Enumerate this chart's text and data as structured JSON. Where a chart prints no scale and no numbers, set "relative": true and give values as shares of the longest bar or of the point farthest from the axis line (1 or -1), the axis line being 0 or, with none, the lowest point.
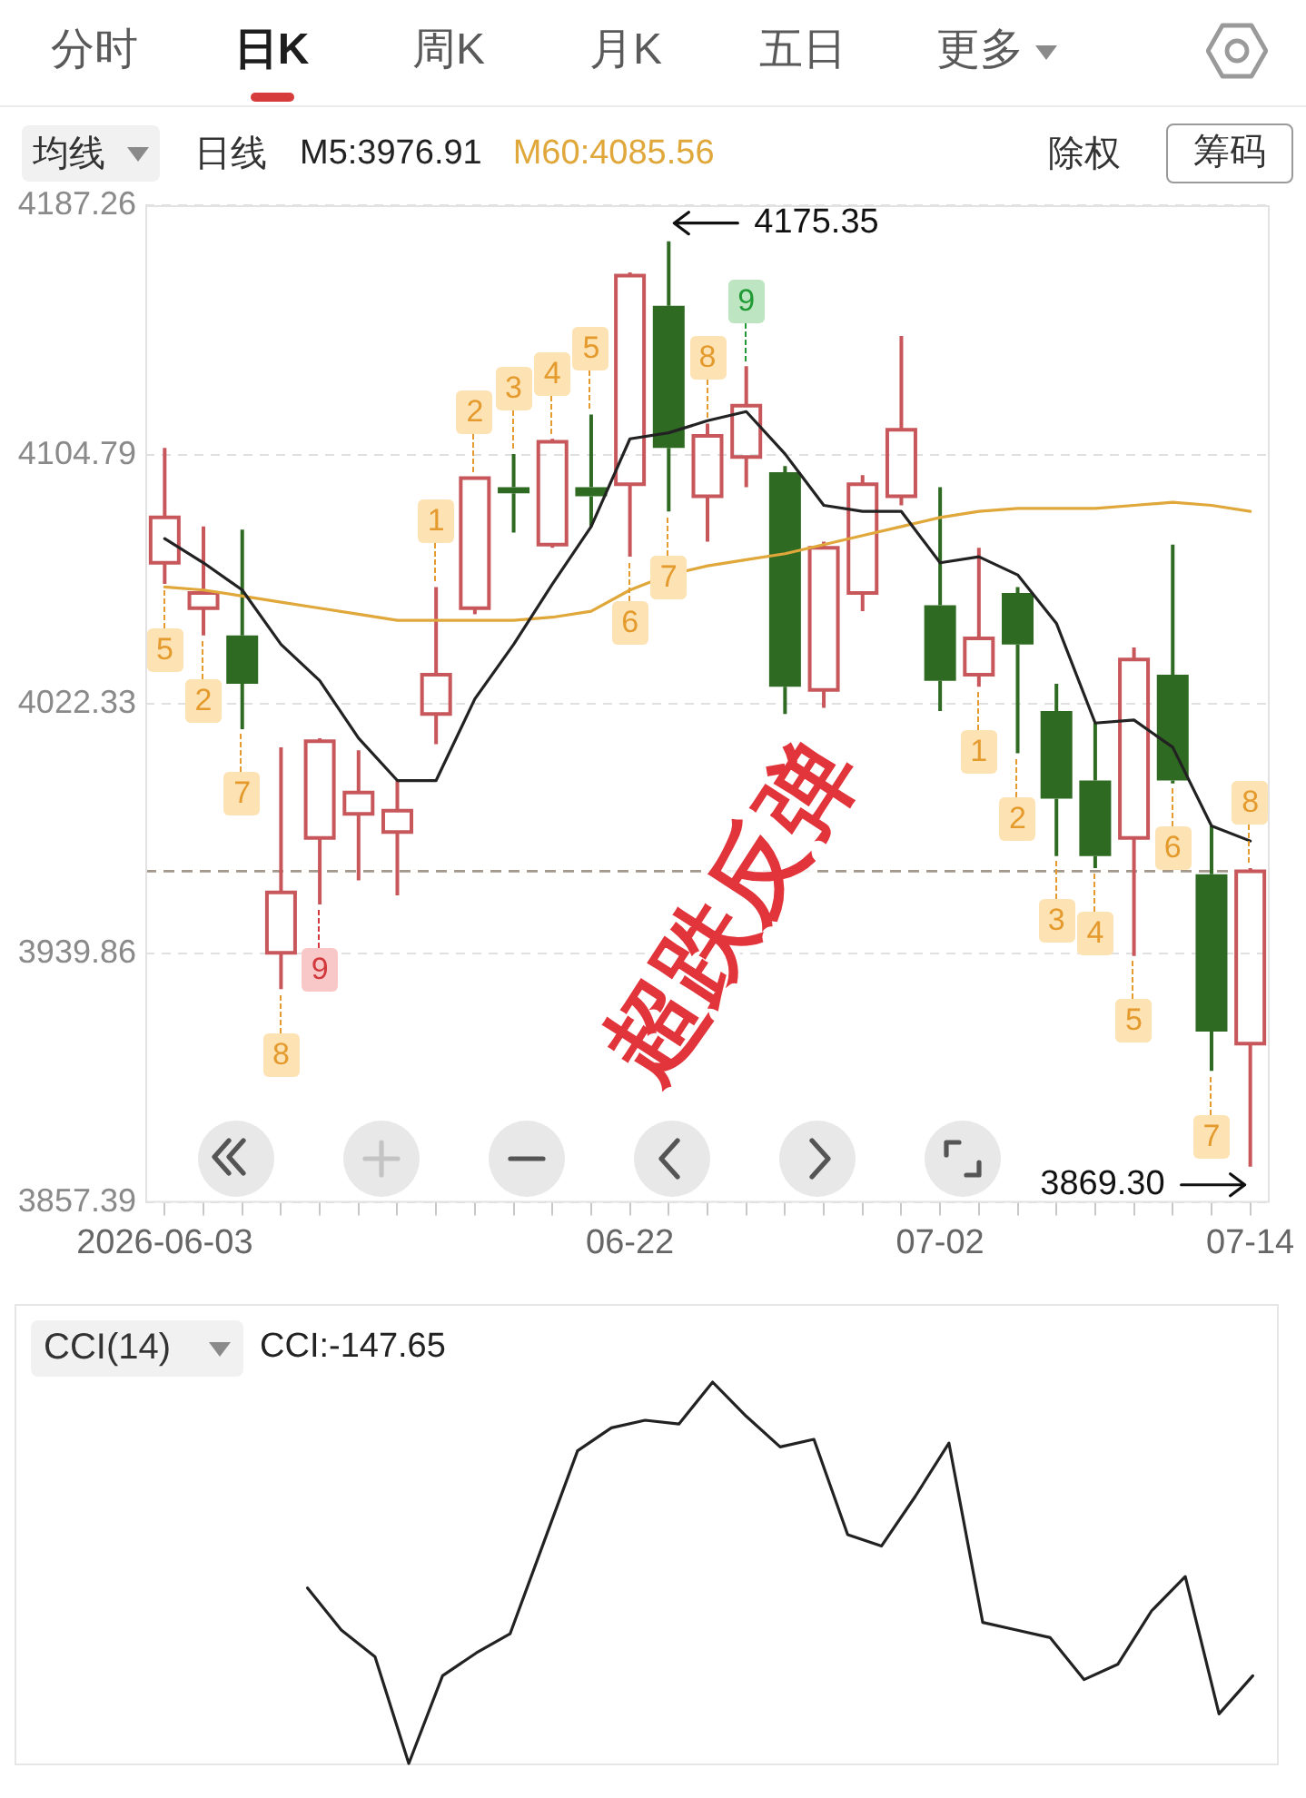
{
  "chart_data": [
    {
      "type": "candlestick",
      "categories": [
        "2026-06-03",
        null,
        null,
        null,
        null,
        null,
        null,
        null,
        null,
        null,
        null,
        null,
        "06-22",
        null,
        null,
        null,
        null,
        null,
        null,
        null,
        "07-02",
        null,
        null,
        null,
        null,
        null,
        null,
        null,
        "07-14"
      ],
      "ohlc": [
        [
          4069,
          4107,
          4062,
          4084
        ],
        [
          4054,
          4081,
          4045,
          4059
        ],
        [
          4045,
          4080,
          4014,
          4029
        ],
        [
          3940,
          4008,
          3928,
          3960
        ],
        [
          3978,
          4011,
          3956,
          4010
        ],
        [
          3986,
          4007,
          3964,
          3993
        ],
        [
          3980,
          3997,
          3959,
          3987
        ],
        [
          4019,
          4061,
          4009,
          4032
        ],
        [
          4054,
          4097,
          4052,
          4097
        ],
        [
          4094,
          4105,
          4079,
          4092
        ],
        [
          4075,
          4110,
          4074,
          4109
        ],
        [
          4094,
          4118,
          4081,
          4091
        ],
        [
          4095,
          4165,
          4071,
          4164
        ],
        [
          4154,
          4175.35,
          4086,
          4107
        ],
        [
          4091,
          4115,
          4076,
          4111
        ],
        [
          4104,
          4134,
          4094,
          4121
        ],
        [
          4099,
          4101,
          4019,
          4028
        ],
        [
          4027,
          4076,
          4021,
          4074
        ],
        [
          4059,
          4098,
          4053,
          4095
        ],
        [
          4091,
          4144,
          4088,
          4113
        ],
        [
          4055,
          4094,
          4020,
          4030
        ],
        [
          4032,
          4074,
          4028,
          4044
        ],
        [
          4059,
          4061,
          4006,
          4042
        ],
        [
          4020,
          4029,
          3972,
          3991
        ],
        [
          3997,
          4016,
          3968,
          3972
        ],
        [
          3978,
          4041,
          3939,
          4037
        ],
        [
          4032,
          4075,
          3996,
          3997
        ],
        [
          3966,
          3982,
          3901,
          3914
        ],
        [
          3910,
          3968,
          3869.3,
          3967
        ]
      ],
      "colors": [
        "#c8575b",
        "#c8575b",
        "#2f6a22",
        "#c8575b",
        "#c8575b",
        "#c8575b",
        "#c8575b",
        "#c8575b",
        "#c8575b",
        "#2f6a22",
        "#c8575b",
        "#2f6a22",
        "#c8575b",
        "#2f6a22",
        "#c8575b",
        "#c8575b",
        "#2f6a22",
        "#c8575b",
        "#c8575b",
        "#c8575b",
        "#2f6a22",
        "#c8575b",
        "#2f6a22",
        "#2f6a22",
        "#2f6a22",
        "#c8575b",
        "#2f6a22",
        "#2f6a22",
        "#c8575b"
      ],
      "series": [
        {
          "name": "M5:3976.91",
          "type": "line",
          "color": "#222222",
          "values": [
            4077,
            4069,
            4060,
            4042,
            4030,
            4011,
            3997,
            3997,
            4024,
            4042,
            4062,
            4081,
            4110,
            4112,
            4116,
            4119,
            4105,
            4088,
            4086,
            4086,
            4069,
            4071,
            4065,
            4049,
            4016,
            4017,
            4008,
            3982,
            3977
          ]
        },
        {
          "name": "M60:4085.56",
          "type": "line",
          "color": "#e0a73a",
          "values": [
            4061,
            4060,
            4058,
            4056,
            4054,
            4052,
            4050,
            4050,
            4050,
            4050,
            4051,
            4053,
            4060,
            4065,
            4068,
            4070,
            4072,
            4075,
            4078,
            4081,
            4084,
            4086,
            4087,
            4087,
            4087,
            4088,
            4089,
            4088,
            4086
          ]
        }
      ],
      "ylim": [
        3857.39,
        4187.26
      ],
      "yticks": [
        3857.39,
        3939.86,
        4022.33,
        4104.79,
        4187.26
      ],
      "grid": "y",
      "legend": "top left",
      "ref_lines": [
        {
          "axis": "y",
          "value": 3967,
          "line_style": "dashed",
          "color": "#a3988a"
        }
      ],
      "annotations": [
        "分时",
        "日K",
        "周K",
        "月K",
        "五日",
        "更多",
        "均线",
        "日线",
        "除权",
        "筹码",
        "超跌反弹",
        "4175.35",
        "3869.30",
        "5",
        "2",
        "7",
        "8",
        "9",
        "1",
        "2",
        "3",
        "4",
        "5",
        "6",
        "7",
        "8",
        "9",
        "1",
        "2",
        "3",
        "4",
        "5",
        "6",
        "7",
        "8"
      ]
    },
    {
      "type": "line",
      "title": "CCI(14)",
      "categories": [
        null,
        null,
        null,
        null,
        null,
        null,
        null,
        null,
        null,
        null,
        null,
        null,
        null,
        null,
        null,
        null,
        null,
        null,
        null,
        null,
        null,
        null,
        null,
        null,
        null,
        null,
        null,
        null,
        null
      ],
      "relative": true,
      "tick_labels": false,
      "legend": "top left",
      "series": [
        {
          "name": "CCI:-147.65",
          "color": "#222222",
          "values": [
            0.46,
            0.35,
            0.28,
            0,
            0.23,
            0.29,
            0.34,
            0.58,
            0.82,
            0.88,
            0.9,
            0.89,
            1,
            0.91,
            0.83,
            0.85,
            0.6,
            0.57,
            0.7,
            0.84,
            0.37,
            0.35,
            0.33,
            0.22,
            0.26,
            0.4,
            0.49,
            0.13,
            0.23
          ]
        }
      ]
    }
  ]
}
